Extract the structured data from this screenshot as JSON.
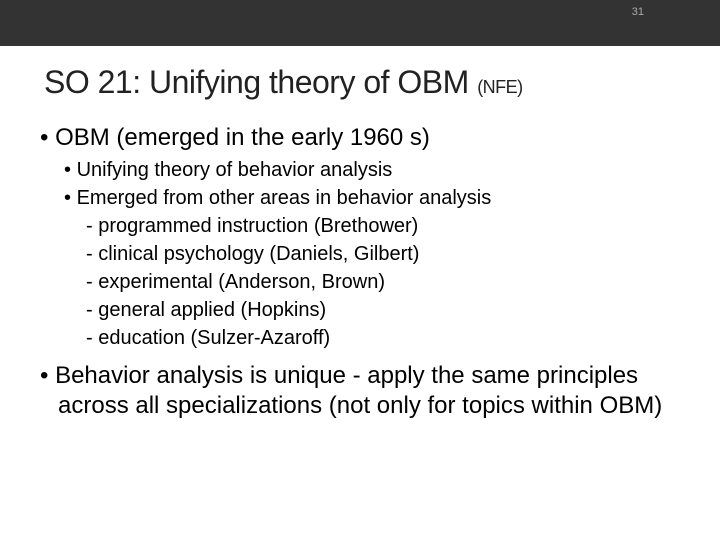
{
  "slide_number": "31",
  "title_main": "SO 21: Unifying theory of  OBM ",
  "title_suffix": "(NFE)",
  "bullet1": "OBM (emerged in the early 1960 s)",
  "sub1": "Unifying theory of behavior analysis",
  "sub2": "Emerged from other areas in behavior analysis",
  "sub2a": "- programmed instruction (Brethower)",
  "sub2b": "- clinical psychology (Daniels, Gilbert)",
  "sub2c": " - experimental (Anderson, Brown)",
  "sub2d": " - general applied (Hopkins)",
  "sub2e": " -    education (Sulzer-Azaroff)",
  "bullet2": "Behavior analysis is unique - apply the same principles across all specializations (not only for topics within OBM)",
  "colors": {
    "top_bar": "#333333",
    "background": "#ffffff",
    "text": "#000000",
    "slide_number": "#aaaaaa"
  },
  "fonts": {
    "title_size": 32,
    "level1_size": 24,
    "level2_size": 20,
    "slide_number_size": 11
  }
}
